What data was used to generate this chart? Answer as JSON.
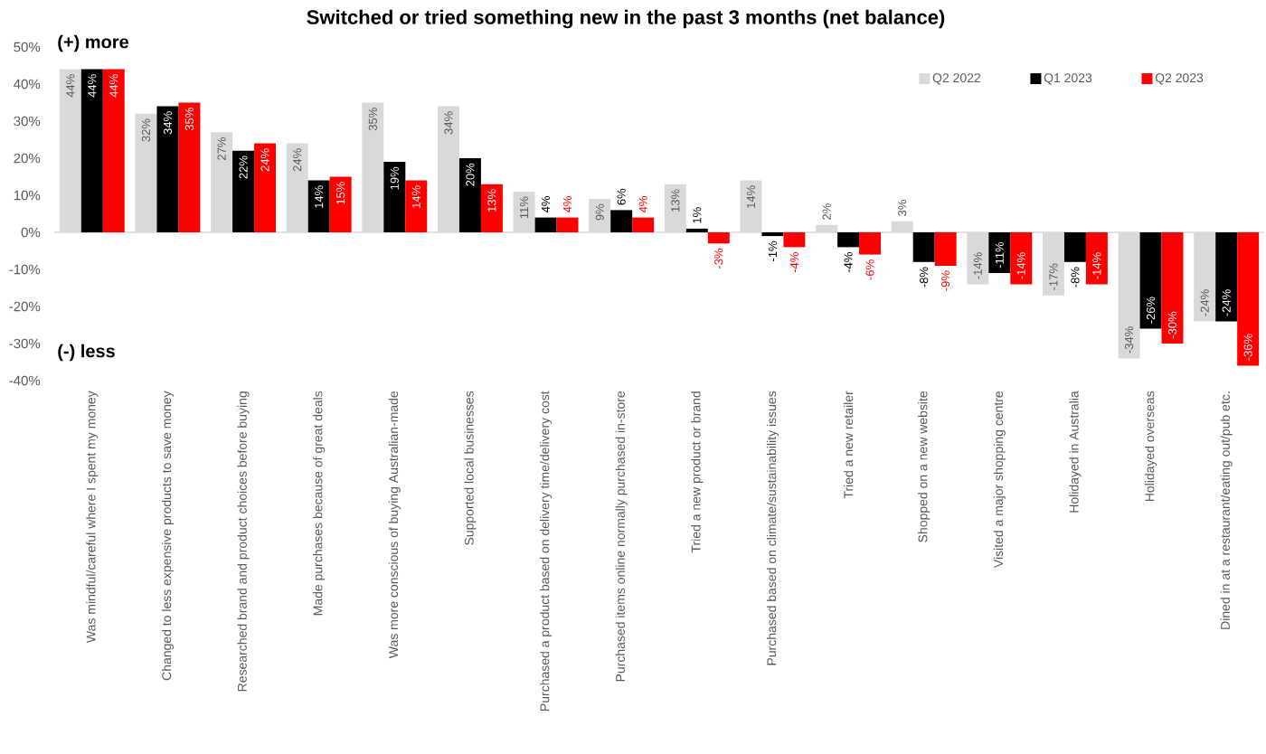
{
  "chart_data": {
    "type": "bar",
    "title": "Switched or tried something new in the past 3 months (net balance)",
    "annotations": [
      "(+) more",
      "(-) less"
    ],
    "categories": [
      "Was mindful/careful where I spent my money",
      "Changed to less expensive products to save money",
      "Researched brand and product choices before buying",
      "Made purchases because of great deals",
      "Was more conscious of buying Australian-made",
      "Supported local businesses",
      "Purchased a product based on delivery time/delivery cost",
      "Purchased items online normally purchased in-store",
      "Tried a new product or brand",
      "Purchased based on climate/sustainability issues",
      "Tried a new retailer",
      "Shopped on a new website",
      "Visited a major shopping centre",
      "Holidayed in Australia",
      "Holidayed overseas",
      "Dined in at a restaurant/eating out/pub etc."
    ],
    "series": [
      {
        "name": "Q2 2022",
        "color": "#d9d9d9",
        "values": [
          44,
          32,
          27,
          24,
          35,
          34,
          11,
          9,
          13,
          14,
          2,
          3,
          -14,
          -17,
          -34,
          -24
        ],
        "value_labels": [
          "44%",
          "32%",
          "27%",
          "24%",
          "35%",
          "34%",
          "11%",
          "9%",
          "13%",
          "14%",
          "2%",
          "3%",
          "-14%",
          "-17%",
          "-34%",
          "-24%"
        ]
      },
      {
        "name": "Q1 2023",
        "color": "#000000",
        "values": [
          44,
          34,
          22,
          14,
          19,
          20,
          4,
          6,
          1,
          -1,
          -4,
          -8,
          -11,
          -8,
          -26,
          -24
        ],
        "value_labels": [
          "44%",
          "34%",
          "22%",
          "14%",
          "19%",
          "20%",
          "4%",
          "6%",
          "1%",
          "-1%",
          "-4%",
          "-8%",
          "-11%",
          "-8%",
          "-26%",
          "-24%"
        ]
      },
      {
        "name": "Q2 2023",
        "color": "#ff0000",
        "values": [
          44,
          35,
          24,
          15,
          14,
          13,
          4,
          4,
          -3,
          -4,
          -6,
          -9,
          -14,
          -14,
          -30,
          -36
        ],
        "value_labels": [
          "44%",
          "35%",
          "24%",
          "15%",
          "14%",
          "13%",
          "4%",
          "4%",
          "-3%",
          "-4%",
          "-6%",
          "-9%",
          "-14%",
          "-14%",
          "-30%",
          "-36%"
        ]
      }
    ],
    "ylim": [
      -40,
      50
    ],
    "yticks": [
      {
        "value": -40,
        "label": "-40%"
      },
      {
        "value": -30,
        "label": "-30%"
      },
      {
        "value": -20,
        "label": "-20%"
      },
      {
        "value": -10,
        "label": "-10%"
      },
      {
        "value": 0,
        "label": "0%"
      },
      {
        "value": 10,
        "label": "10%"
      },
      {
        "value": 20,
        "label": "20%"
      },
      {
        "value": 30,
        "label": "30%"
      },
      {
        "value": 40,
        "label": "40%"
      },
      {
        "value": 50,
        "label": "50%"
      }
    ],
    "legend": "top right"
  }
}
